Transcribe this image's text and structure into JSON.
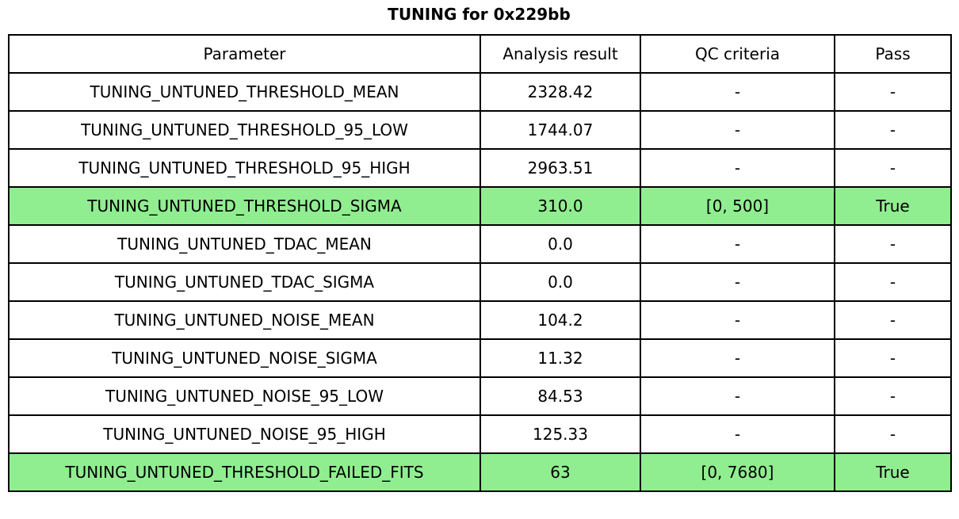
{
  "title": "TUNING for 0x229bb",
  "chart_data": {
    "type": "table",
    "title": "TUNING for 0x229bb",
    "columns": [
      "Parameter",
      "Analysis result",
      "QC criteria",
      "Pass"
    ],
    "rows": [
      [
        "TUNING_UNTUNED_THRESHOLD_MEAN",
        "2328.42",
        "-",
        "-"
      ],
      [
        "TUNING_UNTUNED_THRESHOLD_95_LOW",
        "1744.07",
        "-",
        "-"
      ],
      [
        "TUNING_UNTUNED_THRESHOLD_95_HIGH",
        "2963.51",
        "-",
        "-"
      ],
      [
        "TUNING_UNTUNED_THRESHOLD_SIGMA",
        "310.0",
        "[0, 500]",
        "True"
      ],
      [
        "TUNING_UNTUNED_TDAC_MEAN",
        "0.0",
        "-",
        "-"
      ],
      [
        "TUNING_UNTUNED_TDAC_SIGMA",
        "0.0",
        "-",
        "-"
      ],
      [
        "TUNING_UNTUNED_NOISE_MEAN",
        "104.2",
        "-",
        "-"
      ],
      [
        "TUNING_UNTUNED_NOISE_SIGMA",
        "11.32",
        "-",
        "-"
      ],
      [
        "TUNING_UNTUNED_NOISE_95_LOW",
        "84.53",
        "-",
        "-"
      ],
      [
        "TUNING_UNTUNED_NOISE_95_HIGH",
        "125.33",
        "-",
        "-"
      ],
      [
        "TUNING_UNTUNED_THRESHOLD_FAILED_FITS",
        "63",
        "[0, 7680]",
        "True"
      ]
    ],
    "pass_rows": [
      3,
      10
    ],
    "colors": {
      "pass_row_bg": "#90ee90",
      "border": "#000000",
      "background": "#ffffff",
      "text": "#000000"
    },
    "grid": true,
    "legend_position": "none"
  }
}
